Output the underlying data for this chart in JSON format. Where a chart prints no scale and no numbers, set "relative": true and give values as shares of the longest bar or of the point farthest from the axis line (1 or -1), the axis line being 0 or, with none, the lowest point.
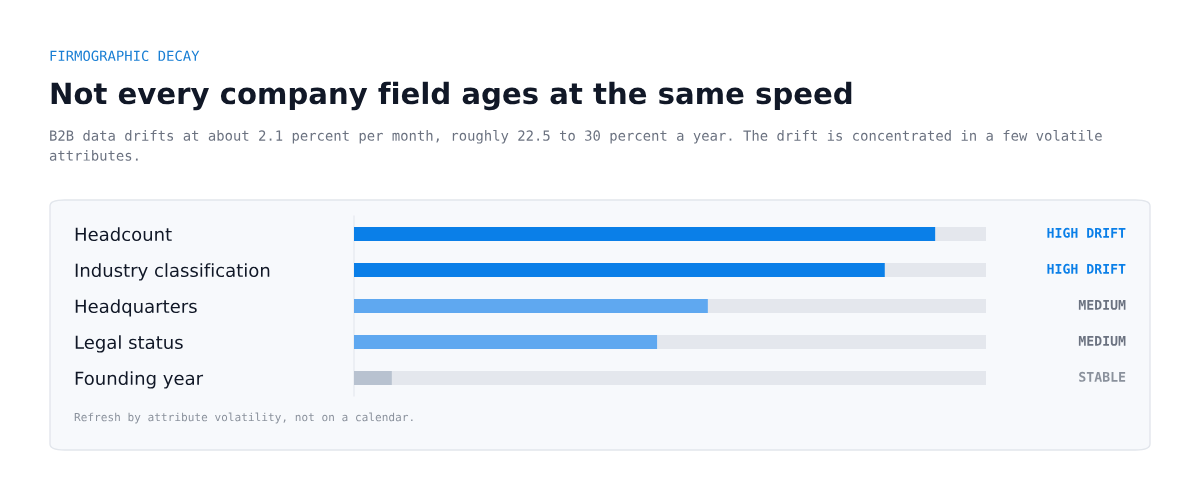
{
  "chart_data": {
    "type": "bar",
    "orientation": "horizontal",
    "stacked": true,
    "relative": true,
    "title": "Not every company field ages at the same speed",
    "subtitle": "B2B data drifts at about 2.1 percent per month, roughly 22.5 to 30 percent a year. The drift is concentrated in a few volatile attributes.",
    "annotations": [
      "FIRMOGRAPHIC DECAY",
      "Refresh by attribute volatility, not on a calendar.",
      "HIGH DRIFT",
      "HIGH DRIFT",
      "MEDIUM",
      "MEDIUM",
      "STABLE"
    ],
    "categories": [
      "Headcount",
      "Industry classification",
      "Headquarters",
      "Legal status",
      "Founding year"
    ],
    "series": [
      {
        "colors": [
          "#0a7fe8",
          "#0a7fe8",
          "#5fa8f0",
          "#5fa8f0",
          "#b8c2d0"
        ],
        "values": [
          0.92,
          0.84,
          0.56,
          0.48,
          0.06
        ]
      },
      {
        "color": "#e4e7ed",
        "values": [
          0.08,
          0.16,
          0.44,
          0.52,
          0.94
        ]
      }
    ],
    "grid": false,
    "legend": false
  }
}
